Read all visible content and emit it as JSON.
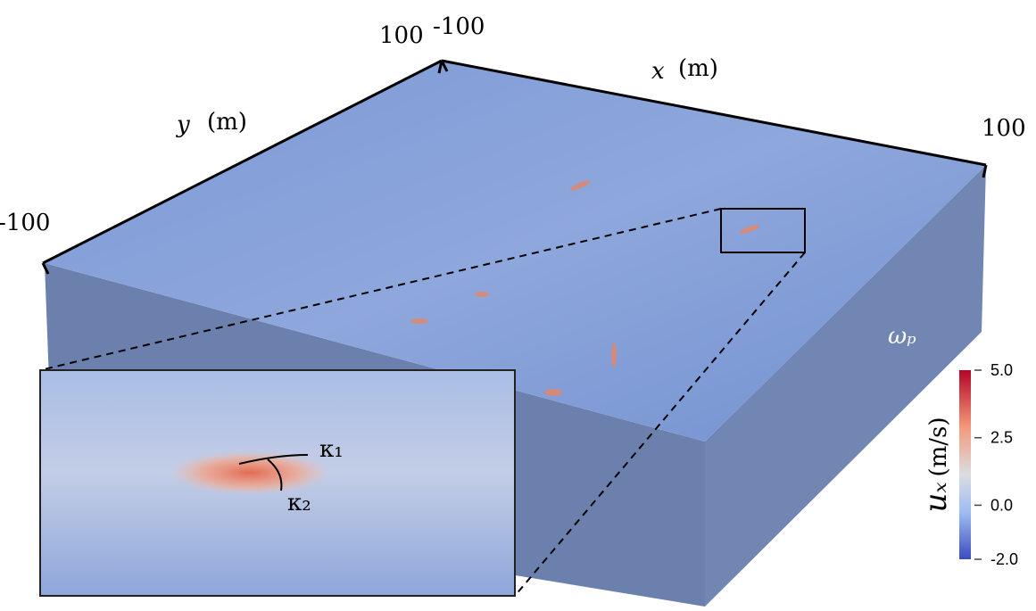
{
  "axes": {
    "x": {
      "symbol": "x",
      "unit": "(m)",
      "ticks": [
        -100,
        100
      ]
    },
    "y": {
      "symbol": "y",
      "unit": "(m)",
      "ticks": [
        -100,
        100
      ]
    }
  },
  "annotation": "ωₚ",
  "inset": {
    "labels": [
      "κ₁",
      "κ₂"
    ]
  },
  "colorbar": {
    "symbol": "uₓ",
    "unit": "(m/s)",
    "lim": [
      -2,
      5
    ],
    "ticks": [
      {
        "value": -2,
        "label": "-2.0"
      },
      {
        "value": 0,
        "label": "0.0"
      },
      2.5,
      {
        "value": 5,
        "label": "5.0"
      }
    ]
  }
}
